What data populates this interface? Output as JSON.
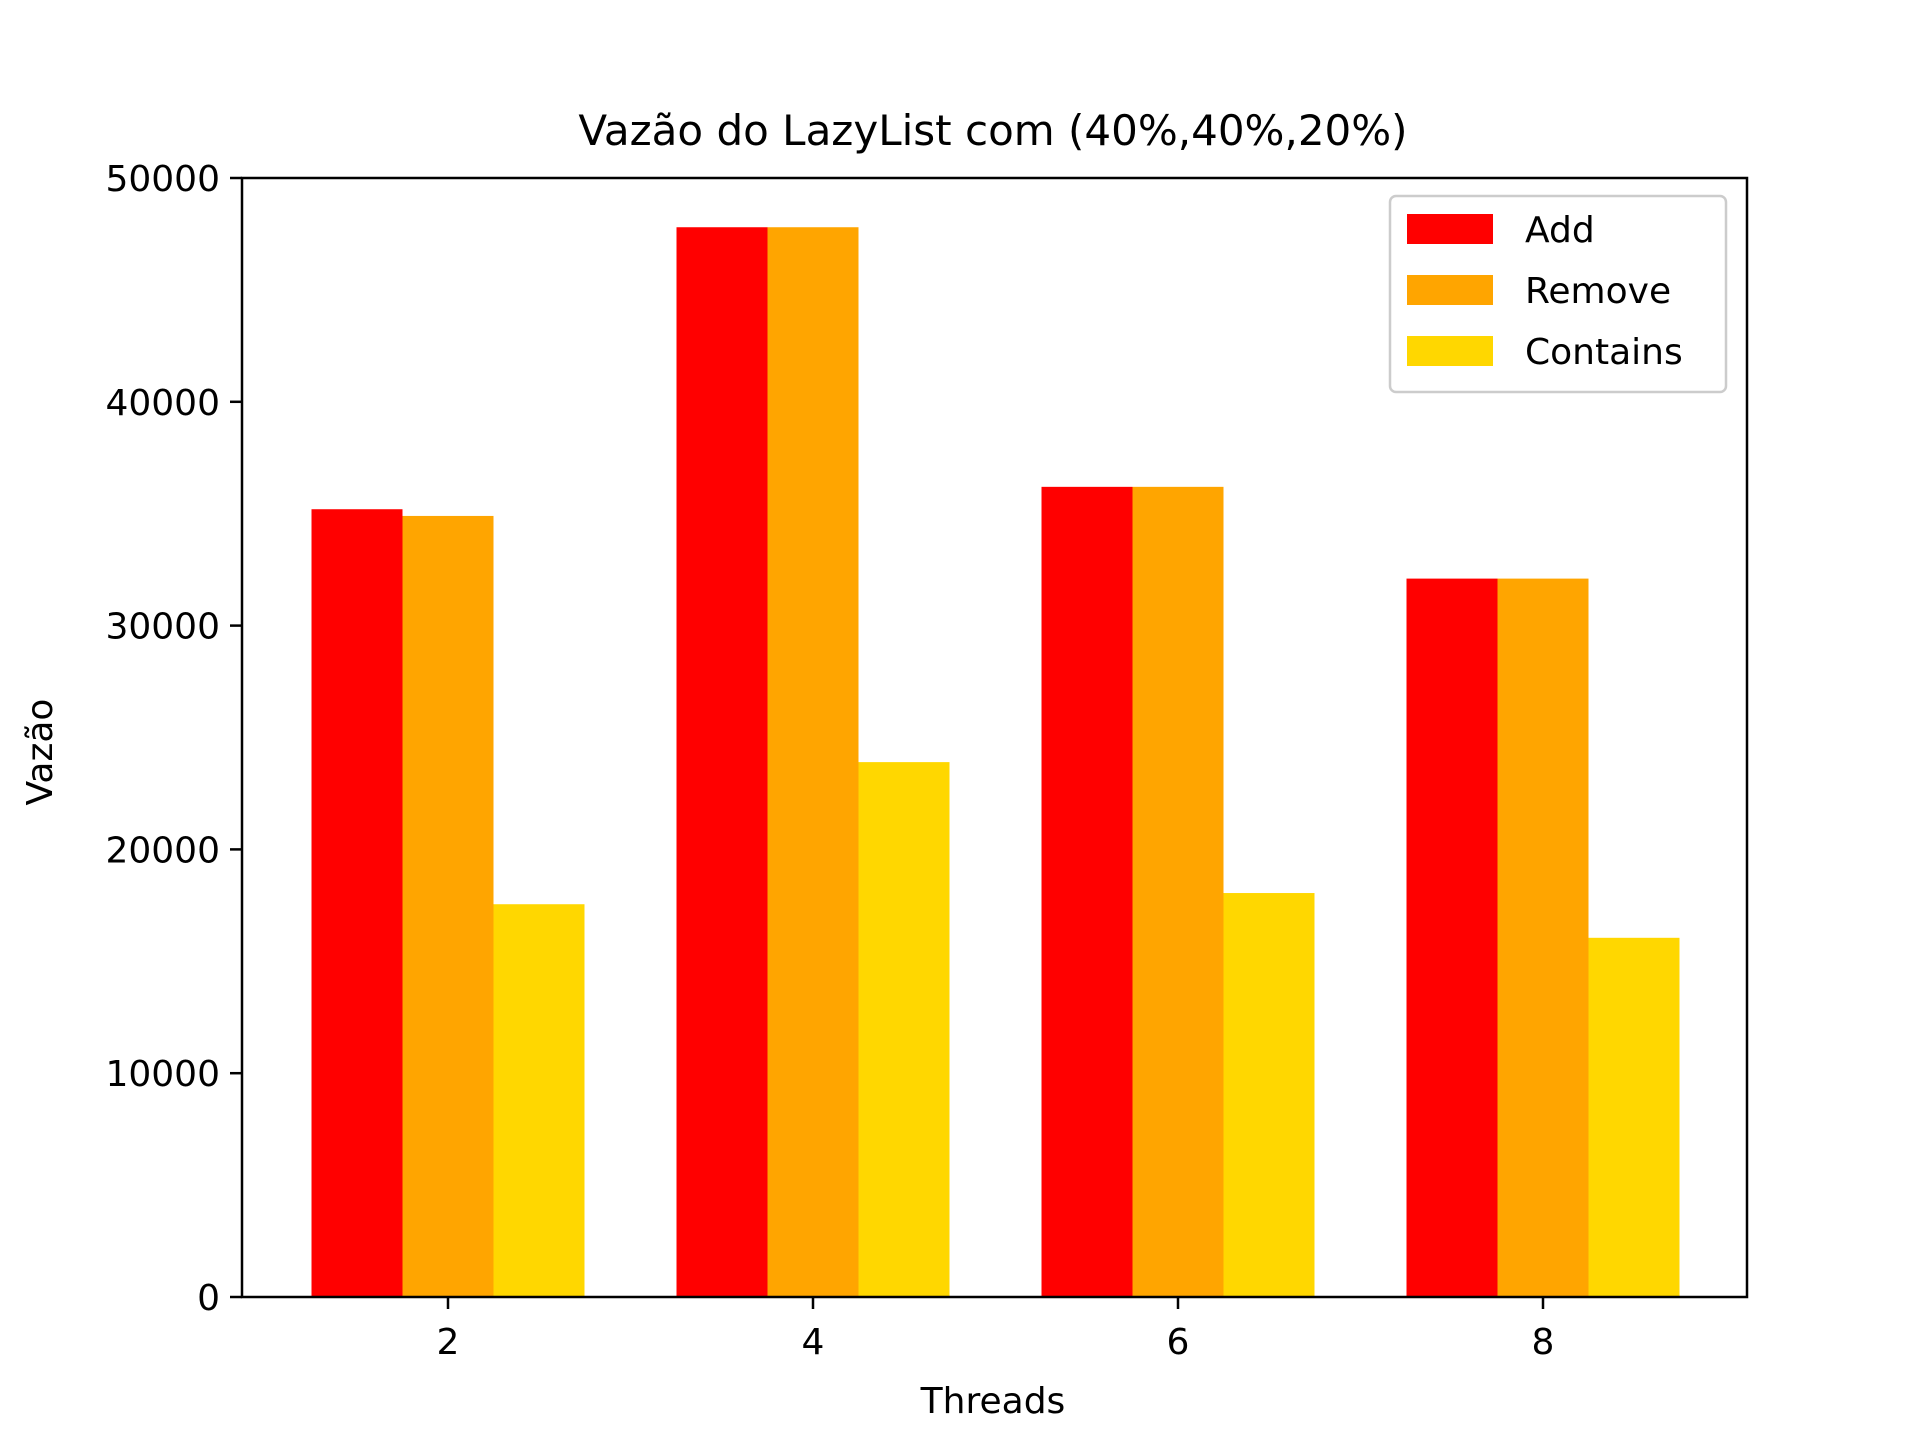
{
  "chart_data": {
    "type": "bar",
    "title": "Vazão do LazyList com (40%,40%,20%)",
    "xlabel": "Threads",
    "ylabel": "Vazão",
    "categories": [
      "2",
      "4",
      "6",
      "8"
    ],
    "series": [
      {
        "name": "Add",
        "color": "#ff0000",
        "values": [
          35200,
          47800,
          36200,
          32100
        ]
      },
      {
        "name": "Remove",
        "color": "#ffa500",
        "values": [
          34900,
          47800,
          36200,
          32100
        ]
      },
      {
        "name": "Contains",
        "color": "#ffd700",
        "values": [
          17550,
          23900,
          18050,
          16050
        ]
      }
    ],
    "ylim": [
      0,
      50000
    ],
    "yticks": [
      "0",
      "10000",
      "20000",
      "30000",
      "40000",
      "50000"
    ],
    "grid": false,
    "legend_position": "top-right"
  }
}
